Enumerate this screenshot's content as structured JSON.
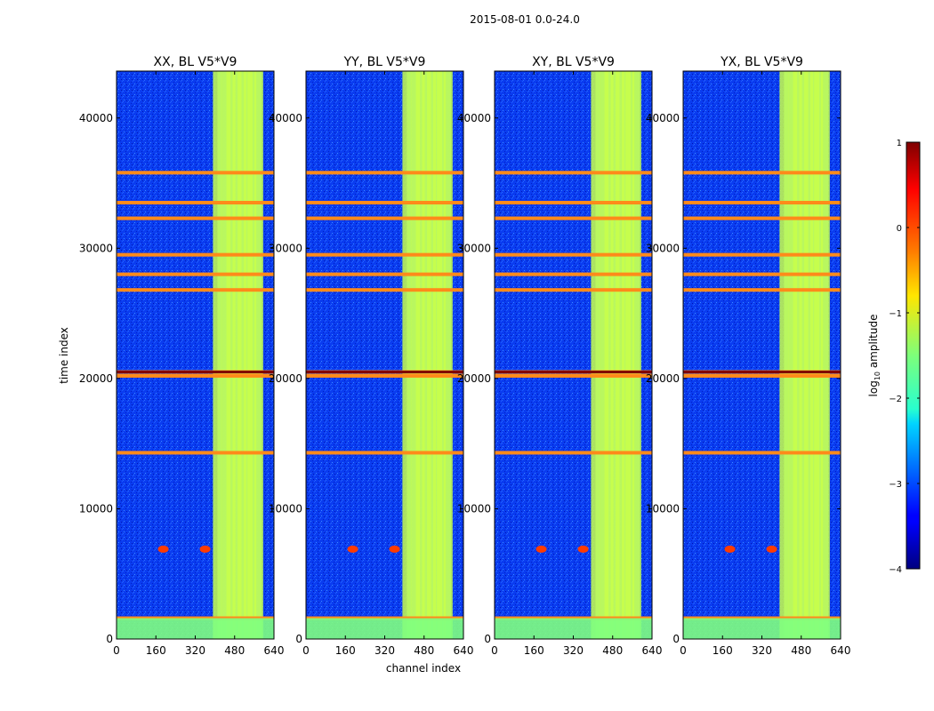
{
  "figure_title": "2015-08-01 0.0-24.0",
  "chart_data": {
    "type": "heatmap",
    "title": "2015-08-01 0.0-24.0",
    "xlabel": "channel index",
    "ylabel": "time index",
    "xlim": [
      0,
      640
    ],
    "ylim": [
      0,
      43600
    ],
    "xticks": [
      "0",
      "160",
      "320",
      "480",
      "640"
    ],
    "yticks": [
      "0",
      "10000",
      "20000",
      "30000",
      "40000"
    ],
    "panels": [
      {
        "title": "XX, BL V5*V9",
        "show_y_tick_labels": true
      },
      {
        "title": "YY, BL V5*V9",
        "show_y_tick_labels": true
      },
      {
        "title": "XY, BL V5*V9",
        "show_y_tick_labels": true
      },
      {
        "title": "YX, BL V5*V9",
        "show_y_tick_labels": true
      }
    ],
    "colorbar": {
      "label": "log10 amplitude",
      "label_prefix": "log",
      "label_sub": "10",
      "label_suffix": " amplitude",
      "range": [
        -4,
        1
      ],
      "ticks": [
        "1",
        "0",
        "−1",
        "−2",
        "−3",
        "−4"
      ],
      "colormap": "jet"
    },
    "bright_channel_band": [
      410,
      590
    ],
    "bright_columns": [
      410,
      445,
      465,
      490,
      510,
      535,
      550,
      578
    ],
    "bright_rows": [
      1600,
      14300,
      20200,
      20500,
      26800,
      28000,
      29500,
      32300,
      33500,
      35800
    ],
    "flagged_rows": [
      20400,
      20600
    ],
    "hot_spots": [
      {
        "channel": 190,
        "time": 6900
      },
      {
        "channel": 360,
        "time": 6900
      }
    ]
  },
  "colors": {
    "jet_low": "#00007f",
    "jet_mid": "#7fff7f",
    "jet_high": "#7f0000",
    "background": "#0a3cf0"
  }
}
